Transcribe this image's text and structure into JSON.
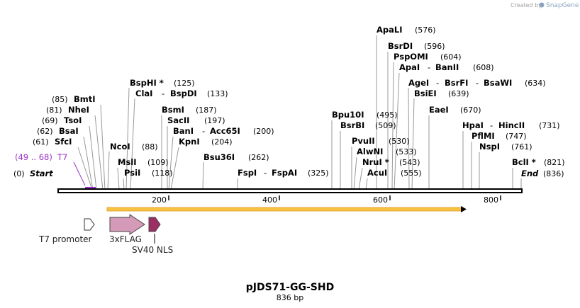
{
  "credit": {
    "created_by": "Created by",
    "brand": "SnapGene"
  },
  "title": "pJDS71-GG-SHD",
  "subtitle": "836 bp",
  "ends": {
    "start": {
      "name": "Start",
      "pos": "(0)"
    },
    "end": {
      "name": "End",
      "pos": "(836)"
    }
  },
  "primer": {
    "name": "T7",
    "range": "(49 .. 68)"
  },
  "left_sites": [
    {
      "name": "BmtI",
      "pos": "(85)"
    },
    {
      "name": "NheI",
      "pos": "(81)"
    },
    {
      "name": "TsoI",
      "pos": "(69)"
    },
    {
      "name": "BsaI",
      "pos": "(62)"
    },
    {
      "name": "SfcI",
      "pos": "(61)"
    }
  ],
  "sites": {
    "bsphi": {
      "name": "BspHI *",
      "pos": "(125)"
    },
    "clai": {
      "name": "ClaI",
      "sep": "-",
      "name2": "BspDI",
      "pos": "(133)"
    },
    "bsmi": {
      "name": "BsmI",
      "pos": "(187)"
    },
    "sacii": {
      "name": "SacII",
      "pos": "(197)"
    },
    "bani": {
      "name": "BanI",
      "sep": "-",
      "name2": "Acc65I",
      "pos": "(200)"
    },
    "kpni": {
      "name": "KpnI",
      "pos": "(204)"
    },
    "ncoi": {
      "name": "NcoI",
      "pos": "(88)"
    },
    "msli": {
      "name": "MslI",
      "pos": "(109)"
    },
    "psii": {
      "name": "PsiI",
      "pos": "(118)"
    },
    "bsu36i": {
      "name": "Bsu36I",
      "pos": "(262)"
    },
    "fspi": {
      "name": "FspI",
      "sep": "-",
      "name2": "FspAI",
      "pos": "(325)"
    },
    "apali": {
      "name": "ApaLI",
      "pos": "(576)"
    },
    "bsrdi": {
      "name": "BsrDI",
      "pos": "(596)"
    },
    "pspomi": {
      "name": "PspOMI",
      "pos": "(604)"
    },
    "apai": {
      "name": "ApaI",
      "sep": "-",
      "name2": "BanII",
      "pos": "(608)"
    },
    "agei": {
      "name": "AgeI",
      "sep": "-",
      "name2": "BsrFI",
      "sep2": "-",
      "name3": "BsaWI",
      "pos": "(634)"
    },
    "bsiei": {
      "name": "BsiEI",
      "pos": "(639)"
    },
    "eaei": {
      "name": "EaeI",
      "pos": "(670)"
    },
    "bpu10i": {
      "name": "Bpu10I",
      "pos": "(495)"
    },
    "bsrbi": {
      "name": "BsrBI",
      "pos": "(509)"
    },
    "pvuii": {
      "name": "PvuII",
      "pos": "(530)"
    },
    "alwni": {
      "name": "AlwNI",
      "pos": "(533)"
    },
    "nrui": {
      "name": "NruI *",
      "pos": "(543)"
    },
    "acui": {
      "name": "AcuI",
      "pos": "(555)"
    },
    "hpai": {
      "name": "HpaI",
      "sep": "-",
      "name2": "HincII",
      "pos": "(731)"
    },
    "pflmi": {
      "name": "PflMI",
      "pos": "(747)"
    },
    "nspi": {
      "name": "NspI",
      "pos": "(761)"
    },
    "bcli": {
      "name": "BclI *",
      "pos": "(821)"
    }
  },
  "ticks": [
    "200",
    "400",
    "600",
    "800"
  ],
  "features": {
    "t7_promoter": "T7 promoter",
    "flag": "3xFLAG",
    "nls": "SV40 NLS"
  },
  "colors": {
    "orf": "#f5c242",
    "flag": "#d49ab8",
    "nls": "#9b2f63",
    "primer": "#9b30c8",
    "backbone": "#000000"
  }
}
